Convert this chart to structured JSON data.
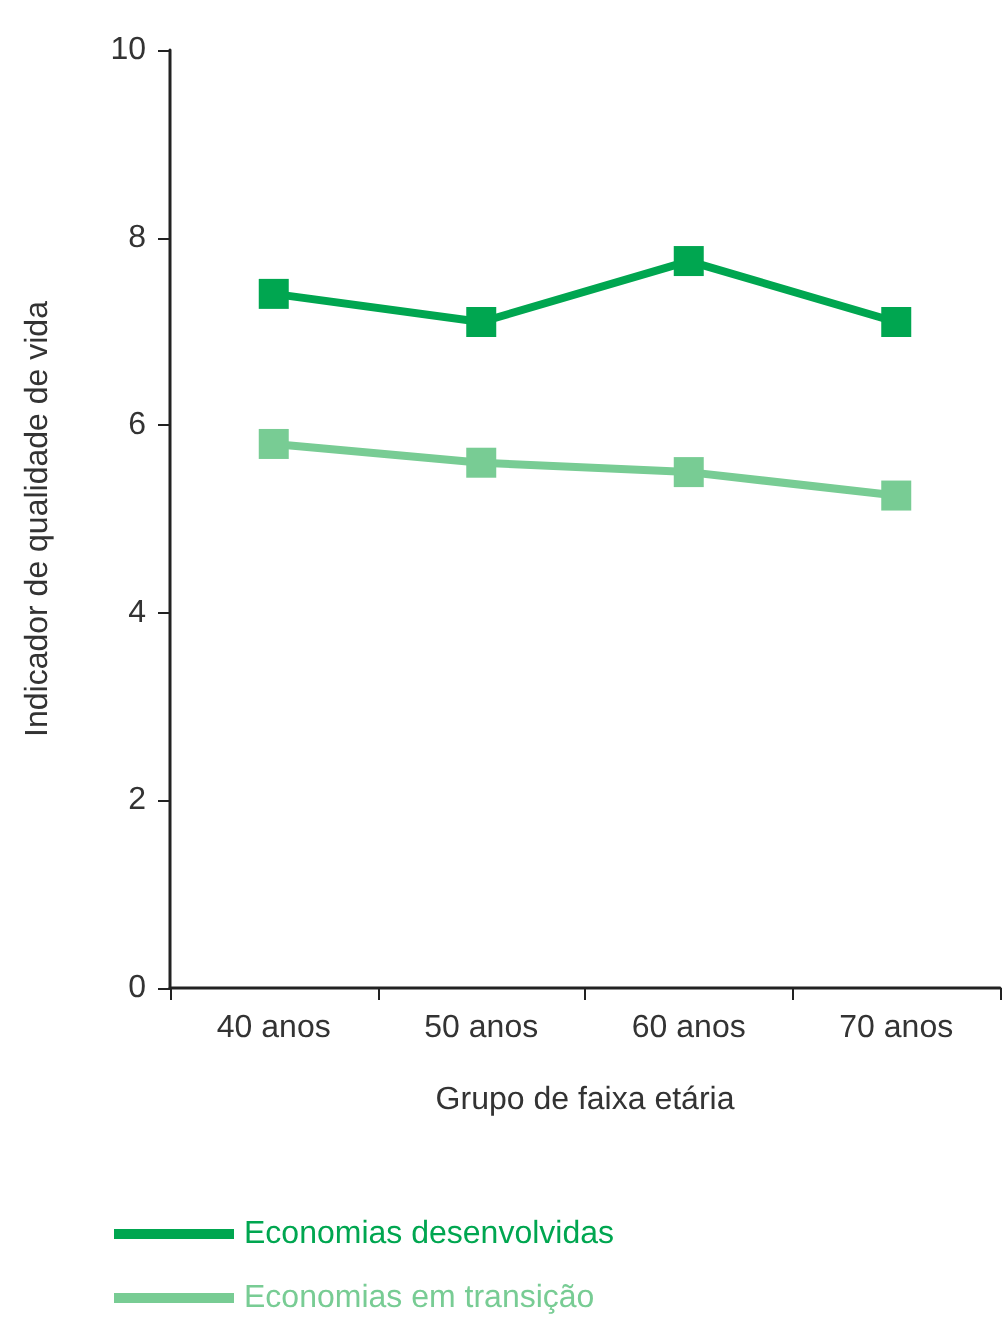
{
  "chart_data": {
    "type": "line",
    "xlabel": "Grupo de faixa etária",
    "ylabel": "Indicador de qualidade de vida",
    "categories": [
      "40 anos",
      "50 anos",
      "60 anos",
      "70 anos"
    ],
    "series": [
      {
        "name": "Economias desenvolvidas",
        "color": "#00a650",
        "values": [
          7.4,
          7.1,
          7.75,
          7.1
        ]
      },
      {
        "name": "Economias em transição",
        "color": "#78cc94",
        "values": [
          5.8,
          5.6,
          5.5,
          5.25
        ]
      }
    ],
    "ylim": [
      0,
      10
    ],
    "yticks": [
      0,
      2,
      4,
      6,
      8,
      10
    ],
    "grid": false,
    "legend": "bottom left",
    "marker": "square",
    "line_style": "solid"
  }
}
